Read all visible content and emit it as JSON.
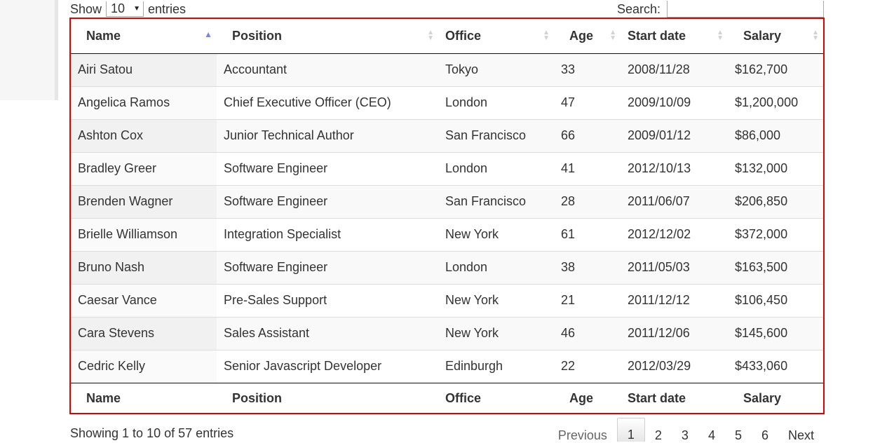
{
  "length_control": {
    "show_label": "Show",
    "selected": "10",
    "entries_label": "entries"
  },
  "search": {
    "label": "Search:",
    "value": ""
  },
  "table": {
    "columns": [
      "Name",
      "Position",
      "Office",
      "Age",
      "Start date",
      "Salary"
    ],
    "sort": {
      "column": "Name",
      "direction": "ascending"
    },
    "rows": [
      [
        "Airi Satou",
        "Accountant",
        "Tokyo",
        "33",
        "2008/11/28",
        "$162,700"
      ],
      [
        "Angelica Ramos",
        "Chief Executive Officer (CEO)",
        "London",
        "47",
        "2009/10/09",
        "$1,200,000"
      ],
      [
        "Ashton Cox",
        "Junior Technical Author",
        "San Francisco",
        "66",
        "2009/01/12",
        "$86,000"
      ],
      [
        "Bradley Greer",
        "Software Engineer",
        "London",
        "41",
        "2012/10/13",
        "$132,000"
      ],
      [
        "Brenden Wagner",
        "Software Engineer",
        "San Francisco",
        "28",
        "2011/06/07",
        "$206,850"
      ],
      [
        "Brielle Williamson",
        "Integration Specialist",
        "New York",
        "61",
        "2012/12/02",
        "$372,000"
      ],
      [
        "Bruno Nash",
        "Software Engineer",
        "London",
        "38",
        "2011/05/03",
        "$163,500"
      ],
      [
        "Caesar Vance",
        "Pre-Sales Support",
        "New York",
        "21",
        "2011/12/12",
        "$106,450"
      ],
      [
        "Cara Stevens",
        "Sales Assistant",
        "New York",
        "46",
        "2011/12/06",
        "$145,600"
      ],
      [
        "Cedric Kelly",
        "Senior Javascript Developer",
        "Edinburgh",
        "22",
        "2012/03/29",
        "$433,060"
      ]
    ],
    "footer": [
      "Name",
      "Position",
      "Office",
      "Age",
      "Start date",
      "Salary"
    ]
  },
  "info": "Showing 1 to 10 of 57 entries",
  "pagination": {
    "previous": "Previous",
    "pages": [
      "1",
      "2",
      "3",
      "4",
      "5",
      "6"
    ],
    "current": "1",
    "next": "Next"
  },
  "colors": {
    "highlight_border": "#e00000",
    "sort_active": "#7b87d9",
    "sort_inactive": "#d2d2d2"
  }
}
